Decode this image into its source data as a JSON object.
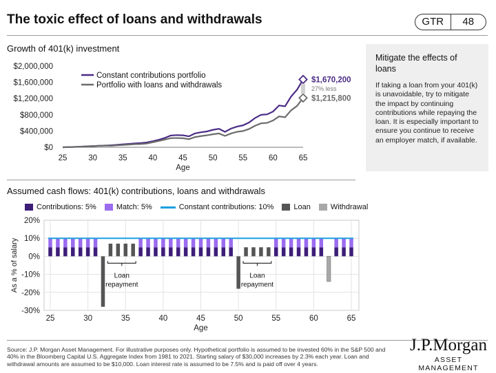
{
  "header": {
    "title": "The toxic effect of loans and withdrawals",
    "badge_left": "GTR",
    "badge_right": "48"
  },
  "sidebar": {
    "heading": "Mitigate the effects of loans",
    "body": "If taking a loan from your 401(k) is unavoidable, try to mitigate the impact by continuing contributions while repaying the loan. It is especially important to ensure you continue to receive an employer match, if available."
  },
  "colors": {
    "contrib": "#3d1d78",
    "match": "#9b6cf0",
    "constant_line": "#1aa0e0",
    "loan": "#555555",
    "withdrawal": "#a8a8a8",
    "series_main": "#4b2b86",
    "series_loans": "#6b6b6b"
  },
  "footer": {
    "footnote": "Source: J.P. Morgan Asset Management. For illustrative purposes only. Hypothetical portfolio is assumed to be invested 60% in the S&P 500 and 40% in the Bloomberg Capital U.S. Aggregate Index from 1981 to 2021. Starting salary of $30,000 increases by 2.3% each year. Loan and withdrawal amounts are assumed to be $10,000. Loan interest rate is assumed to be 7.5% and is paid off over 4 years.",
    "logo_name": "J.P.Morgan",
    "logo_sub": "ASSET MANAGEMENT"
  },
  "chart_data": [
    {
      "type": "line",
      "title": "Growth of 401(k) investment",
      "xlabel": "Age",
      "ylabel": "",
      "xlim": [
        25,
        65
      ],
      "ylim": [
        0,
        2000000
      ],
      "x_ticks": [
        25,
        30,
        35,
        40,
        45,
        50,
        55,
        60,
        65
      ],
      "y_ticks": [
        0,
        400000,
        800000,
        1200000,
        1600000,
        2000000
      ],
      "y_tick_labels": [
        "$0",
        "$400,000",
        "$800,000",
        "$1,200,000",
        "$1,600,000",
        "$2,000,000"
      ],
      "legend_position": "top-left",
      "x": [
        25,
        26,
        27,
        28,
        29,
        30,
        31,
        32,
        33,
        34,
        35,
        36,
        37,
        38,
        39,
        40,
        41,
        42,
        43,
        44,
        45,
        46,
        47,
        48,
        49,
        50,
        51,
        52,
        53,
        54,
        55,
        56,
        57,
        58,
        59,
        60,
        61,
        62,
        63,
        64,
        65
      ],
      "series": [
        {
          "name": "Constant contributions portfolio",
          "values": [
            0,
            4000,
            9000,
            16000,
            24000,
            30000,
            36000,
            42000,
            50000,
            60000,
            72000,
            84000,
            96000,
            104000,
            120000,
            150000,
            185000,
            230000,
            290000,
            300000,
            295000,
            270000,
            340000,
            370000,
            390000,
            430000,
            455000,
            380000,
            460000,
            510000,
            540000,
            610000,
            720000,
            800000,
            810000,
            880000,
            1030000,
            1010000,
            1250000,
            1420000,
            1670200
          ]
        },
        {
          "name": "Portfolio with loans and withdrawals",
          "values": [
            0,
            4000,
            9000,
            16000,
            24000,
            30000,
            36000,
            42000,
            38000,
            48000,
            56000,
            66000,
            76000,
            80000,
            92000,
            125000,
            155000,
            190000,
            225000,
            228000,
            222000,
            200000,
            250000,
            275000,
            295000,
            320000,
            340000,
            280000,
            340000,
            380000,
            400000,
            450000,
            530000,
            590000,
            600000,
            660000,
            760000,
            740000,
            910000,
            1020000,
            1215800
          ]
        }
      ],
      "end_labels": [
        "$1,670,200",
        "$1,215,800"
      ],
      "annotation": "27% less"
    },
    {
      "type": "bar",
      "title": "Assumed cash flows: 401(k) contributions, loans and withdrawals",
      "xlabel": "Age",
      "ylabel": "As a % of salary",
      "xlim": [
        25,
        65
      ],
      "ylim": [
        -30,
        20
      ],
      "x_ticks": [
        25,
        30,
        35,
        40,
        45,
        50,
        55,
        60,
        65
      ],
      "y_ticks": [
        20,
        10,
        0,
        -10,
        -20,
        -30
      ],
      "y_tick_labels": [
        "20%",
        "10%",
        "0%",
        "-10%",
        "-20%",
        "-30%"
      ],
      "legend": [
        "Contributions: 5%",
        "Match: 5%",
        "Constant contributions: 10%",
        "Loan",
        "Withdrawal"
      ],
      "constant_line": 10,
      "ages": [
        25,
        26,
        27,
        28,
        29,
        30,
        31,
        32,
        33,
        34,
        35,
        36,
        37,
        38,
        39,
        40,
        41,
        42,
        43,
        44,
        45,
        46,
        47,
        48,
        49,
        50,
        51,
        52,
        53,
        54,
        55,
        56,
        57,
        58,
        59,
        60,
        61,
        62,
        63,
        64,
        65
      ],
      "contributions": [
        5,
        5,
        5,
        5,
        5,
        5,
        5,
        0,
        0,
        0,
        0,
        0,
        5,
        5,
        5,
        5,
        5,
        5,
        5,
        5,
        5,
        5,
        5,
        5,
        5,
        0,
        0,
        0,
        0,
        0,
        5,
        5,
        5,
        5,
        5,
        5,
        5,
        0,
        5,
        5,
        5
      ],
      "match": [
        5,
        5,
        5,
        5,
        5,
        5,
        5,
        0,
        0,
        0,
        0,
        0,
        5,
        5,
        5,
        5,
        5,
        5,
        5,
        5,
        5,
        5,
        5,
        5,
        5,
        0,
        0,
        0,
        0,
        0,
        5,
        5,
        5,
        5,
        5,
        5,
        5,
        0,
        5,
        5,
        5
      ],
      "loan": [
        0,
        0,
        0,
        0,
        0,
        0,
        0,
        -28,
        7,
        7,
        7,
        7,
        0,
        0,
        0,
        0,
        0,
        0,
        0,
        0,
        0,
        0,
        0,
        0,
        0,
        -18,
        5,
        5,
        5,
        5,
        0,
        0,
        0,
        0,
        0,
        0,
        0,
        0,
        0,
        0,
        0
      ],
      "withdrawal": [
        0,
        0,
        0,
        0,
        0,
        0,
        0,
        0,
        0,
        0,
        0,
        0,
        0,
        0,
        0,
        0,
        0,
        0,
        0,
        0,
        0,
        0,
        0,
        0,
        0,
        0,
        0,
        0,
        0,
        0,
        0,
        0,
        0,
        0,
        0,
        0,
        0,
        -14,
        0,
        0,
        0
      ],
      "annotations": [
        {
          "text_line1": "Loan",
          "text_line2": "repayment",
          "from_age": 33,
          "to_age": 36
        },
        {
          "text_line1": "Loan",
          "text_line2": "repayment",
          "from_age": 51,
          "to_age": 54
        }
      ]
    }
  ]
}
